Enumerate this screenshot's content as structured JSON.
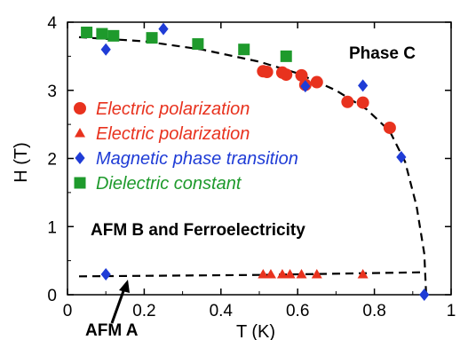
{
  "chart_data": {
    "type": "scatter",
    "xlabel": "T (K)",
    "ylabel": "H (T)",
    "xlim": [
      0,
      1
    ],
    "ylim": [
      0,
      4
    ],
    "x_ticks": [
      "0",
      "0.2",
      "0.4",
      "0.6",
      "0.8",
      "1"
    ],
    "y_ticks": [
      "0",
      "1",
      "2",
      "3",
      "4"
    ],
    "region_labels": {
      "phase_c": "Phase C",
      "afm_b": "AFM B and Ferroelectricity",
      "afm_a": "AFM A"
    },
    "legend_position": "center-left",
    "series": [
      {
        "name": "Electric polarization",
        "marker": "circle",
        "color": "#e8321e",
        "points": [
          [
            0.51,
            3.28
          ],
          [
            0.52,
            3.27
          ],
          [
            0.56,
            3.26
          ],
          [
            0.57,
            3.23
          ],
          [
            0.61,
            3.22
          ],
          [
            0.62,
            3.08
          ],
          [
            0.65,
            3.12
          ],
          [
            0.73,
            2.83
          ],
          [
            0.77,
            2.82
          ],
          [
            0.84,
            2.45
          ]
        ]
      },
      {
        "name": "Electric polarization",
        "marker": "triangle",
        "color": "#e8321e",
        "points": [
          [
            0.51,
            0.3
          ],
          [
            0.53,
            0.3
          ],
          [
            0.56,
            0.3
          ],
          [
            0.58,
            0.3
          ],
          [
            0.61,
            0.3
          ],
          [
            0.65,
            0.3
          ],
          [
            0.77,
            0.3
          ]
        ]
      },
      {
        "name": "Magnetic phase transition",
        "marker": "diamond",
        "color": "#1f3cd6",
        "points": [
          [
            0.1,
            3.6
          ],
          [
            0.25,
            3.9
          ],
          [
            0.62,
            3.06
          ],
          [
            0.77,
            3.07
          ],
          [
            0.87,
            2.02
          ],
          [
            0.1,
            0.3
          ],
          [
            0.93,
            0.0
          ]
        ]
      },
      {
        "name": "Dielectric constant",
        "marker": "square",
        "color": "#1e9a2c",
        "points": [
          [
            0.05,
            3.85
          ],
          [
            0.09,
            3.83
          ],
          [
            0.12,
            3.8
          ],
          [
            0.22,
            3.77
          ],
          [
            0.34,
            3.68
          ],
          [
            0.46,
            3.6
          ],
          [
            0.57,
            3.5
          ]
        ]
      }
    ],
    "boundary_lines": [
      {
        "style": "dashed",
        "points": [
          [
            0.03,
            3.78
          ],
          [
            0.2,
            3.72
          ],
          [
            0.35,
            3.6
          ],
          [
            0.5,
            3.42
          ],
          [
            0.6,
            3.25
          ],
          [
            0.7,
            3.0
          ],
          [
            0.78,
            2.72
          ],
          [
            0.84,
            2.4
          ],
          [
            0.88,
            1.95
          ],
          [
            0.91,
            1.3
          ],
          [
            0.93,
            0.6
          ],
          [
            0.935,
            0.0
          ]
        ]
      },
      {
        "style": "dashed",
        "points": [
          [
            0.03,
            0.27
          ],
          [
            0.5,
            0.29
          ],
          [
            0.93,
            0.33
          ]
        ]
      }
    ]
  }
}
